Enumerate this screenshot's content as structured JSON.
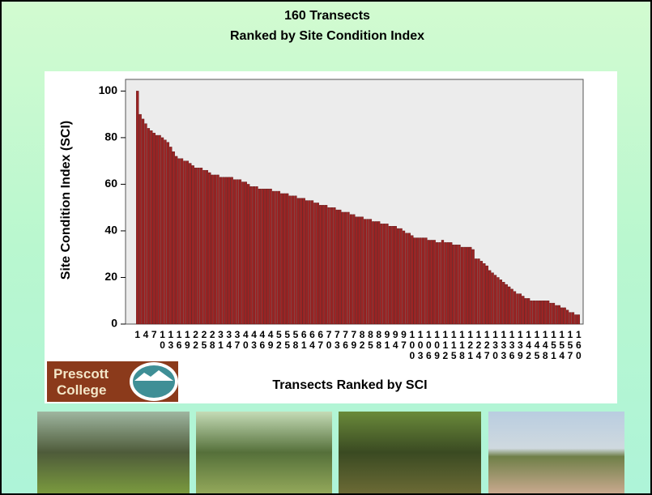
{
  "chart_data": {
    "type": "bar",
    "title": "160 Transects",
    "subtitle": "Ranked by Site Condition Index",
    "y_label": "Site Condition Index (SCI)",
    "x_label": "Transects Ranked by SCI",
    "color": "#9b2424",
    "ylim": [
      0,
      105
    ],
    "yticks": [
      0,
      20,
      40,
      60,
      80,
      100
    ],
    "grid": false,
    "categories": [
      "1",
      null,
      null,
      "4",
      null,
      null,
      "7",
      null,
      null,
      "10",
      null,
      null,
      "13",
      null,
      null,
      "16",
      null,
      null,
      "19",
      null,
      null,
      "22",
      null,
      null,
      "25",
      null,
      null,
      "28",
      null,
      null,
      "31",
      null,
      null,
      "34",
      null,
      null,
      "37",
      null,
      null,
      "40",
      null,
      null,
      "43",
      null,
      null,
      "46",
      null,
      null,
      "49",
      null,
      null,
      "52",
      null,
      null,
      "55",
      null,
      null,
      "58",
      null,
      null,
      "61",
      null,
      null,
      "64",
      null,
      null,
      "67",
      null,
      null,
      "70",
      null,
      null,
      "73",
      null,
      null,
      "76",
      null,
      null,
      "79",
      null,
      null,
      "82",
      null,
      null,
      "85",
      null,
      null,
      "88",
      null,
      null,
      "91",
      null,
      null,
      "94",
      null,
      null,
      "97",
      null,
      null,
      "100",
      null,
      null,
      "103",
      null,
      null,
      "106",
      null,
      null,
      "109",
      null,
      null,
      "112",
      null,
      null,
      "115",
      null,
      null,
      "118",
      null,
      null,
      "121",
      null,
      null,
      "124",
      null,
      null,
      "127",
      null,
      null,
      "130",
      null,
      null,
      "133",
      null,
      null,
      "136",
      null,
      null,
      "139",
      null,
      null,
      "142",
      null,
      null,
      "145",
      null,
      null,
      "148",
      null,
      null,
      "151",
      null,
      null,
      "154",
      null,
      null,
      "157",
      null,
      null,
      "160"
    ],
    "values": [
      100,
      90,
      88,
      86,
      84,
      83,
      82,
      81,
      81,
      80,
      79,
      78,
      76,
      74,
      72,
      71,
      71,
      70,
      70,
      69,
      68,
      67,
      67,
      67,
      66,
      66,
      65,
      64,
      64,
      64,
      63,
      63,
      63,
      63,
      63,
      62,
      62,
      62,
      61,
      61,
      60,
      59,
      59,
      59,
      58,
      58,
      58,
      58,
      58,
      57,
      57,
      57,
      56,
      56,
      56,
      55,
      55,
      55,
      54,
      54,
      54,
      53,
      53,
      53,
      52,
      52,
      51,
      51,
      51,
      50,
      50,
      50,
      49,
      49,
      48,
      48,
      48,
      47,
      47,
      46,
      46,
      46,
      45,
      45,
      45,
      44,
      44,
      44,
      43,
      43,
      43,
      42,
      42,
      42,
      41,
      41,
      40,
      39,
      39,
      38,
      37,
      37,
      37,
      37,
      37,
      36,
      36,
      36,
      35,
      35,
      36,
      35,
      35,
      35,
      34,
      34,
      34,
      33,
      33,
      33,
      33,
      32,
      28,
      28,
      27,
      26,
      25,
      23,
      22,
      21,
      20,
      19,
      18,
      17,
      16,
      15,
      14,
      13,
      13,
      12,
      11,
      11,
      10,
      10,
      10,
      10,
      10,
      10,
      10,
      9,
      9,
      8,
      8,
      7,
      7,
      6,
      5,
      5,
      4,
      4
    ]
  },
  "logo": [
    "Prescott",
    "College"
  ]
}
